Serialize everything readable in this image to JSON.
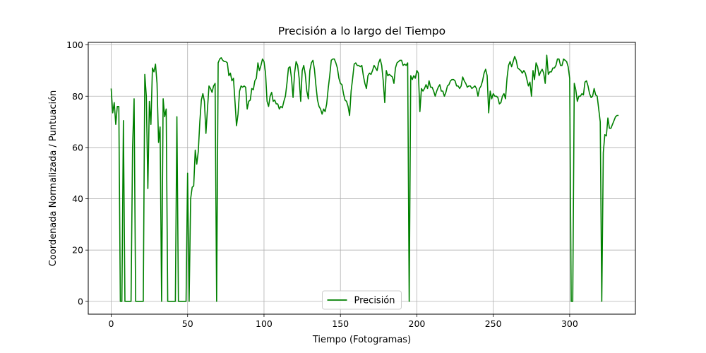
{
  "chart_data": {
    "type": "line",
    "title": "Precisión a lo largo del Tiempo",
    "xlabel": "Tiempo (Fotogramas)",
    "ylabel": "Coordenada Normalizada / Puntuación",
    "xlim": [
      -15,
      343
    ],
    "ylim": [
      -5,
      101
    ],
    "xticks": [
      0,
      50,
      100,
      150,
      200,
      250,
      300
    ],
    "yticks": [
      0,
      20,
      40,
      60,
      80,
      100
    ],
    "grid": true,
    "legend_position": "bottom-center",
    "series": [
      {
        "name": "Precisión",
        "color": "#008000",
        "points": [
          [
            0,
            83
          ],
          [
            1,
            73.5
          ],
          [
            2,
            77.5
          ],
          [
            3,
            69
          ],
          [
            4,
            76
          ],
          [
            5,
            76
          ],
          [
            6,
            0
          ],
          [
            7,
            0
          ],
          [
            8,
            70.5
          ],
          [
            9,
            0
          ],
          [
            10,
            0
          ],
          [
            11,
            0
          ],
          [
            12,
            0
          ],
          [
            13,
            0
          ],
          [
            14,
            60
          ],
          [
            15,
            79
          ],
          [
            16,
            0
          ],
          [
            17,
            0
          ],
          [
            18,
            0
          ],
          [
            19,
            0
          ],
          [
            20,
            0
          ],
          [
            21,
            0
          ],
          [
            22,
            88.5
          ],
          [
            23,
            80
          ],
          [
            24,
            44
          ],
          [
            25,
            78
          ],
          [
            26,
            69
          ],
          [
            27,
            91
          ],
          [
            28,
            89.5
          ],
          [
            29,
            92.5
          ],
          [
            30,
            85
          ],
          [
            31,
            62
          ],
          [
            32,
            68
          ],
          [
            33,
            0
          ],
          [
            34,
            79
          ],
          [
            35,
            72
          ],
          [
            36,
            75
          ],
          [
            37,
            0
          ],
          [
            38,
            0
          ],
          [
            39,
            0
          ],
          [
            40,
            0
          ],
          [
            41,
            0
          ],
          [
            42,
            0
          ],
          [
            43,
            72
          ],
          [
            44,
            0
          ],
          [
            45,
            0
          ],
          [
            46,
            0
          ],
          [
            47,
            0
          ],
          [
            48,
            0
          ],
          [
            49,
            0
          ],
          [
            50,
            50
          ],
          [
            51,
            0
          ],
          [
            52,
            40
          ],
          [
            53,
            44.5
          ],
          [
            54,
            45
          ],
          [
            55,
            59
          ],
          [
            56,
            53.5
          ],
          [
            57,
            58.5
          ],
          [
            58,
            70
          ],
          [
            59,
            78.5
          ],
          [
            60,
            81
          ],
          [
            61,
            78
          ],
          [
            62,
            65.5
          ],
          [
            63,
            75
          ],
          [
            64,
            84
          ],
          [
            65,
            83
          ],
          [
            66,
            81.5
          ],
          [
            67,
            84
          ],
          [
            68,
            85
          ],
          [
            69,
            0
          ],
          [
            70,
            93
          ],
          [
            71,
            94.5
          ],
          [
            72,
            95
          ],
          [
            73,
            94
          ],
          [
            74,
            93.5
          ],
          [
            75,
            93.5
          ],
          [
            76,
            93
          ],
          [
            77,
            88
          ],
          [
            78,
            89
          ],
          [
            79,
            86
          ],
          [
            80,
            87
          ],
          [
            81,
            78
          ],
          [
            82,
            68.5
          ],
          [
            83,
            73
          ],
          [
            84,
            82
          ],
          [
            85,
            84
          ],
          [
            86,
            83.5
          ],
          [
            87,
            84
          ],
          [
            88,
            83.5
          ],
          [
            89,
            75
          ],
          [
            90,
            78
          ],
          [
            91,
            78.5
          ],
          [
            92,
            83
          ],
          [
            93,
            82.5
          ],
          [
            94,
            86
          ],
          [
            95,
            87
          ],
          [
            96,
            93
          ],
          [
            97,
            90
          ],
          [
            98,
            92
          ],
          [
            99,
            94.5
          ],
          [
            100,
            93.5
          ],
          [
            101,
            89
          ],
          [
            102,
            78
          ],
          [
            103,
            76
          ],
          [
            104,
            80
          ],
          [
            105,
            81.5
          ],
          [
            106,
            78
          ],
          [
            107,
            78.5
          ],
          [
            108,
            77
          ],
          [
            109,
            77
          ],
          [
            110,
            75
          ],
          [
            111,
            76
          ],
          [
            112,
            75.5
          ],
          [
            113,
            78
          ],
          [
            114,
            80
          ],
          [
            115,
            85
          ],
          [
            116,
            91
          ],
          [
            117,
            91.5
          ],
          [
            118,
            87
          ],
          [
            119,
            79.5
          ],
          [
            120,
            89
          ],
          [
            121,
            93.5
          ],
          [
            122,
            92
          ],
          [
            123,
            87
          ],
          [
            124,
            78
          ],
          [
            125,
            90
          ],
          [
            126,
            92
          ],
          [
            127,
            88.5
          ],
          [
            128,
            82
          ],
          [
            129,
            79
          ],
          [
            130,
            90
          ],
          [
            131,
            93
          ],
          [
            132,
            94
          ],
          [
            133,
            90.5
          ],
          [
            134,
            84
          ],
          [
            135,
            78.5
          ],
          [
            136,
            76
          ],
          [
            137,
            75
          ],
          [
            138,
            73
          ],
          [
            139,
            75
          ],
          [
            140,
            74
          ],
          [
            141,
            77
          ],
          [
            142,
            83
          ],
          [
            143,
            88
          ],
          [
            144,
            94
          ],
          [
            145,
            94.5
          ],
          [
            146,
            94.5
          ],
          [
            147,
            93
          ],
          [
            148,
            91
          ],
          [
            149,
            87
          ],
          [
            150,
            85
          ],
          [
            151,
            84.5
          ],
          [
            152,
            81
          ],
          [
            153,
            78.5
          ],
          [
            154,
            78
          ],
          [
            155,
            76
          ],
          [
            156,
            72.5
          ],
          [
            157,
            82
          ],
          [
            158,
            87
          ],
          [
            159,
            92.5
          ],
          [
            160,
            93
          ],
          [
            161,
            92
          ],
          [
            162,
            92
          ],
          [
            163,
            91.5
          ],
          [
            164,
            92
          ],
          [
            165,
            88
          ],
          [
            166,
            85
          ],
          [
            167,
            83
          ],
          [
            168,
            88
          ],
          [
            169,
            89
          ],
          [
            170,
            88.5
          ],
          [
            171,
            90
          ],
          [
            172,
            92
          ],
          [
            173,
            91
          ],
          [
            174,
            90
          ],
          [
            175,
            93
          ],
          [
            176,
            94.5
          ],
          [
            177,
            92
          ],
          [
            178,
            86
          ],
          [
            179,
            77.5
          ],
          [
            180,
            90
          ],
          [
            181,
            88
          ],
          [
            182,
            88.5
          ],
          [
            183,
            88
          ],
          [
            184,
            87.5
          ],
          [
            185,
            85
          ],
          [
            186,
            91
          ],
          [
            187,
            93
          ],
          [
            188,
            93.5
          ],
          [
            189,
            94
          ],
          [
            190,
            94
          ],
          [
            191,
            92
          ],
          [
            192,
            92.5
          ],
          [
            193,
            92
          ],
          [
            194,
            93
          ],
          [
            195,
            0
          ],
          [
            196,
            88
          ],
          [
            197,
            86.5
          ],
          [
            198,
            88
          ],
          [
            199,
            87
          ],
          [
            200,
            90
          ],
          [
            201,
            89
          ],
          [
            202,
            74
          ],
          [
            203,
            83
          ],
          [
            204,
            82
          ],
          [
            205,
            83
          ],
          [
            206,
            84.5
          ],
          [
            207,
            83
          ],
          [
            208,
            86
          ],
          [
            209,
            83.5
          ],
          [
            210,
            83.5
          ],
          [
            211,
            82
          ],
          [
            212,
            80
          ],
          [
            213,
            82
          ],
          [
            214,
            83.5
          ],
          [
            215,
            84.5
          ],
          [
            216,
            82
          ],
          [
            217,
            82
          ],
          [
            218,
            80
          ],
          [
            219,
            81.5
          ],
          [
            220,
            84
          ],
          [
            221,
            84.5
          ],
          [
            222,
            86
          ],
          [
            223,
            86.5
          ],
          [
            224,
            86.5
          ],
          [
            225,
            86
          ],
          [
            226,
            84
          ],
          [
            227,
            84
          ],
          [
            228,
            83
          ],
          [
            229,
            84
          ],
          [
            230,
            87.5
          ],
          [
            231,
            86
          ],
          [
            232,
            85
          ],
          [
            233,
            83.5
          ],
          [
            234,
            84
          ],
          [
            235,
            84
          ],
          [
            236,
            83
          ],
          [
            237,
            83.5
          ],
          [
            238,
            84
          ],
          [
            239,
            83
          ],
          [
            240,
            80
          ],
          [
            241,
            83
          ],
          [
            242,
            84
          ],
          [
            243,
            86
          ],
          [
            244,
            89
          ],
          [
            245,
            90.5
          ],
          [
            246,
            88
          ],
          [
            247,
            73.5
          ],
          [
            248,
            82
          ],
          [
            249,
            79
          ],
          [
            250,
            81
          ],
          [
            251,
            80
          ],
          [
            252,
            80
          ],
          [
            253,
            79.5
          ],
          [
            254,
            77
          ],
          [
            255,
            77.5
          ],
          [
            256,
            80
          ],
          [
            257,
            81
          ],
          [
            258,
            79
          ],
          [
            259,
            87
          ],
          [
            260,
            92
          ],
          [
            261,
            93.5
          ],
          [
            262,
            91.5
          ],
          [
            263,
            93.5
          ],
          [
            264,
            95.5
          ],
          [
            265,
            94
          ],
          [
            266,
            91
          ],
          [
            267,
            90.5
          ],
          [
            268,
            90
          ],
          [
            269,
            89
          ],
          [
            270,
            90
          ],
          [
            271,
            89
          ],
          [
            272,
            86.5
          ],
          [
            273,
            84
          ],
          [
            274,
            85.5
          ],
          [
            275,
            80
          ],
          [
            276,
            90
          ],
          [
            277,
            86.5
          ],
          [
            278,
            93
          ],
          [
            279,
            91.5
          ],
          [
            280,
            88
          ],
          [
            281,
            89.5
          ],
          [
            282,
            90.5
          ],
          [
            283,
            89
          ],
          [
            284,
            85
          ],
          [
            285,
            96
          ],
          [
            286,
            88.5
          ],
          [
            287,
            89.5
          ],
          [
            288,
            89.5
          ],
          [
            289,
            91
          ],
          [
            290,
            91
          ],
          [
            291,
            92
          ],
          [
            292,
            94.5
          ],
          [
            293,
            94.5
          ],
          [
            294,
            92
          ],
          [
            295,
            92
          ],
          [
            296,
            94.5
          ],
          [
            297,
            94
          ],
          [
            298,
            93.5
          ],
          [
            299,
            91.5
          ],
          [
            300,
            87
          ],
          [
            301,
            0
          ],
          [
            302,
            0
          ],
          [
            303,
            85
          ],
          [
            304,
            82.5
          ],
          [
            305,
            78
          ],
          [
            306,
            80
          ],
          [
            307,
            80
          ],
          [
            308,
            81
          ],
          [
            309,
            80.5
          ],
          [
            310,
            85.5
          ],
          [
            311,
            86
          ],
          [
            312,
            84
          ],
          [
            313,
            81
          ],
          [
            314,
            79.5
          ],
          [
            315,
            80
          ],
          [
            316,
            83
          ],
          [
            317,
            80.5
          ],
          [
            318,
            80
          ],
          [
            319,
            75
          ],
          [
            320,
            70
          ],
          [
            321,
            0
          ],
          [
            322,
            58
          ],
          [
            323,
            65
          ],
          [
            324,
            64.5
          ],
          [
            325,
            71.5
          ],
          [
            326,
            67.5
          ],
          [
            327,
            67.5
          ],
          [
            328,
            69
          ],
          [
            329,
            70.5
          ],
          [
            330,
            72
          ],
          [
            331,
            72.5
          ],
          [
            332,
            72.5
          ]
        ]
      }
    ]
  }
}
